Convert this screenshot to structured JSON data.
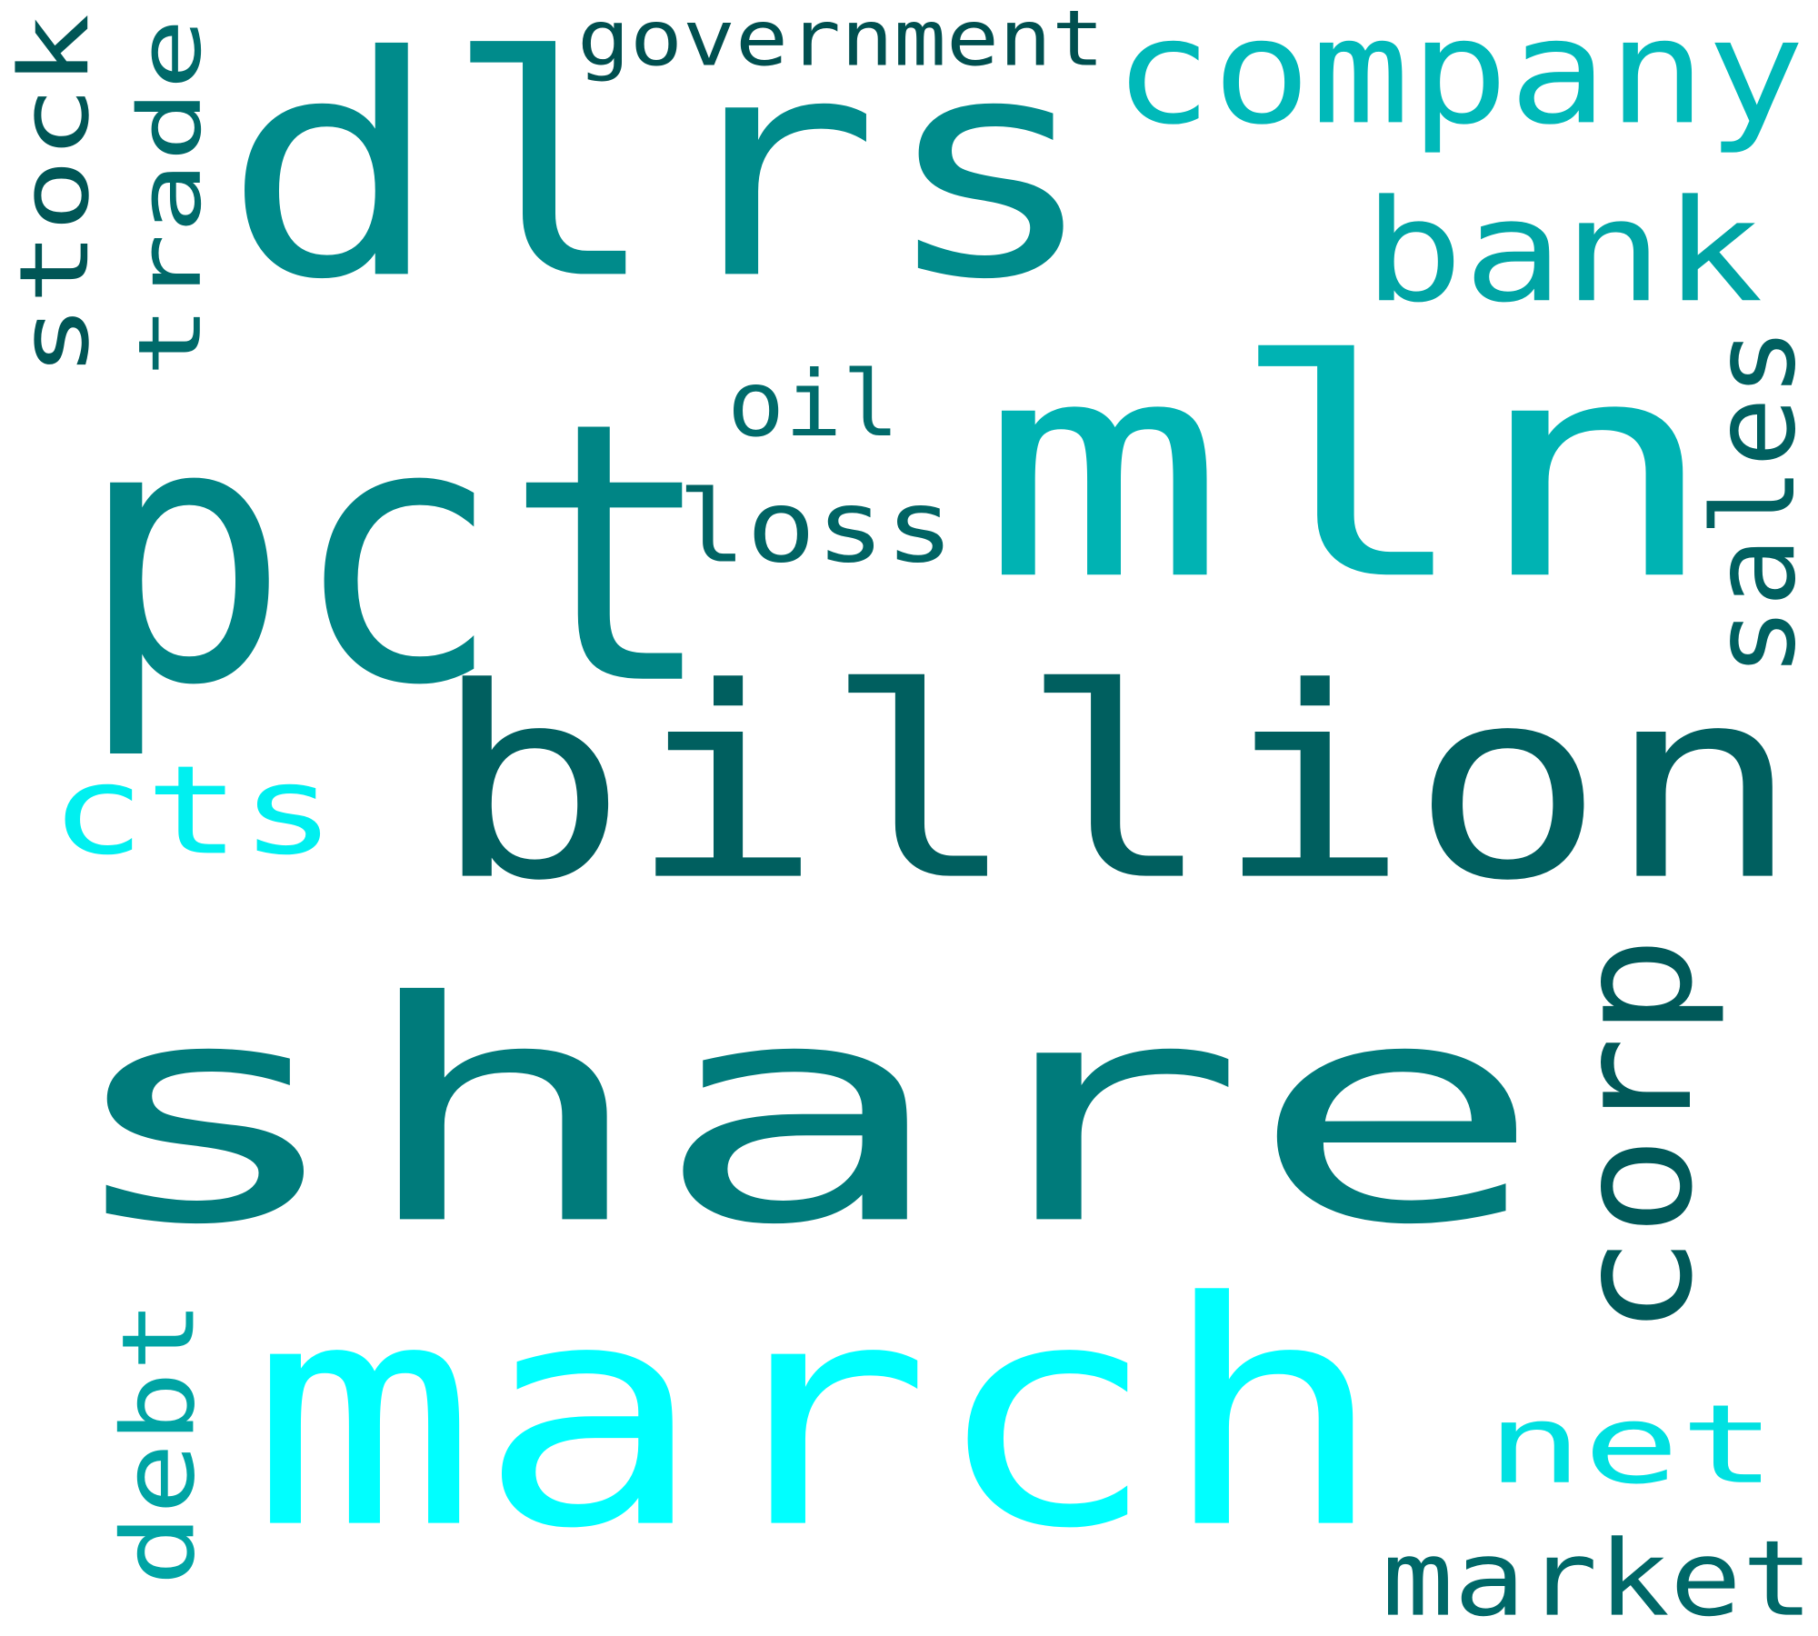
{
  "background": "#ffffff",
  "words": [
    {
      "id": "share",
      "text": "share",
      "color": "#007b7b"
    },
    {
      "id": "dlrs",
      "text": "dlrs",
      "color": "#008b8b"
    },
    {
      "id": "pct",
      "text": "pct",
      "color": "#008585"
    },
    {
      "id": "mln",
      "text": "mln",
      "color": "#00b3b3"
    },
    {
      "id": "billion",
      "text": "billion",
      "color": "#005f5f"
    },
    {
      "id": "march",
      "text": "march",
      "color": "#00ffff"
    },
    {
      "id": "company",
      "text": "company",
      "color": "#00b9b9"
    },
    {
      "id": "bank",
      "text": "bank",
      "color": "#00a5a5"
    },
    {
      "id": "corp",
      "text": "corp",
      "color": "#005959"
    },
    {
      "id": "net",
      "text": "net",
      "color": "#00e1e1"
    },
    {
      "id": "cts",
      "text": "cts",
      "color": "#00f0f0"
    },
    {
      "id": "oil",
      "text": "oil",
      "color": "#006b6b"
    },
    {
      "id": "loss",
      "text": "loss",
      "color": "#006464"
    },
    {
      "id": "sales",
      "text": "sales",
      "color": "#006060"
    },
    {
      "id": "stock",
      "text": "stock",
      "color": "#005656"
    },
    {
      "id": "trade",
      "text": "trade",
      "color": "#006a6a"
    },
    {
      "id": "debt",
      "text": "debt",
      "color": "#00a4a4"
    },
    {
      "id": "market",
      "text": "market",
      "color": "#006868"
    },
    {
      "id": "government",
      "text": "government",
      "color": "#005050"
    }
  ]
}
